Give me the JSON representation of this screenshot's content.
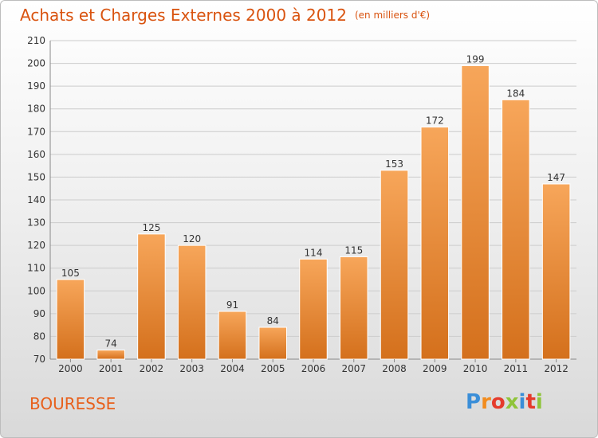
{
  "title": "Achats et Charges Externes 2000 à 2012",
  "unit": "(en milliers d'€)",
  "commune": "BOURESSE",
  "logo_text": "Proxiti",
  "colors": {
    "title": "#d9530f",
    "bar_light": "#f7a65a",
    "bar_dark": "#d4701c",
    "grid": "#cccccc"
  },
  "chart_data": {
    "type": "bar",
    "title": "Achats et Charges Externes 2000 à 2012",
    "subtitle": "(en milliers d'€)",
    "categories": [
      "2000",
      "2001",
      "2002",
      "2003",
      "2004",
      "2005",
      "2006",
      "2007",
      "2008",
      "2009",
      "2010",
      "2011",
      "2012"
    ],
    "values": [
      105,
      74,
      125,
      120,
      91,
      84,
      114,
      115,
      153,
      172,
      199,
      184,
      147
    ],
    "ylim": [
      70,
      210
    ],
    "yticks": [
      70,
      80,
      90,
      100,
      110,
      120,
      130,
      140,
      150,
      160,
      170,
      180,
      190,
      200,
      210
    ],
    "grid": true,
    "xlabel": "",
    "ylabel": ""
  }
}
